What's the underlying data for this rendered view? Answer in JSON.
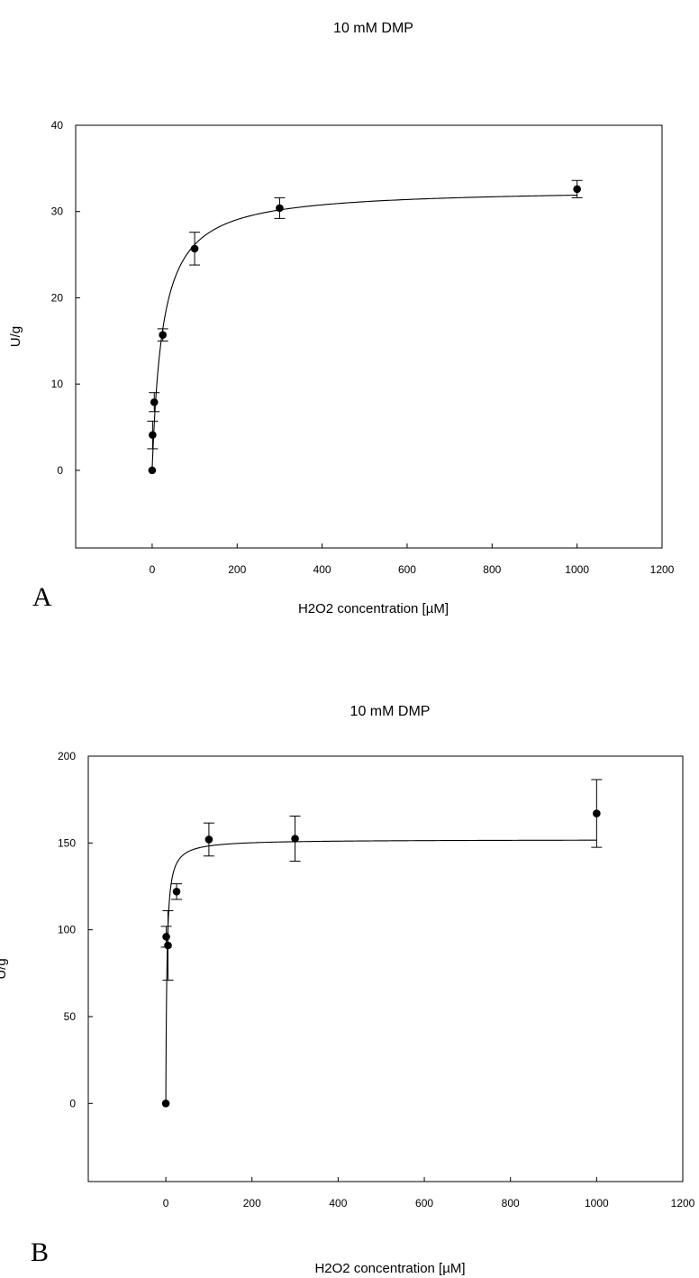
{
  "chart_data": [
    {
      "type": "scatter",
      "panel_label": "A",
      "title": "10 mM DMP",
      "xlabel": "H2O2 concentration [µM]",
      "ylabel": "U/g",
      "xlim": [
        -180,
        1200
      ],
      "ylim": [
        -9,
        40
      ],
      "xticks": [
        0,
        200,
        400,
        600,
        800,
        1000,
        1200
      ],
      "yticks": [
        0,
        10,
        20,
        30,
        40
      ],
      "grid": false,
      "fit_curve": {
        "vmax": 32.7,
        "km": 25
      },
      "points": [
        {
          "x": 0,
          "y": 0,
          "err": 0
        },
        {
          "x": 1,
          "y": 4.1,
          "err": 1.6
        },
        {
          "x": 5,
          "y": 7.9,
          "err": 1.1
        },
        {
          "x": 25,
          "y": 15.7,
          "err": 0.7
        },
        {
          "x": 100,
          "y": 25.7,
          "err": 1.9
        },
        {
          "x": 300,
          "y": 30.4,
          "err": 1.2
        },
        {
          "x": 1000,
          "y": 32.6,
          "err": 1.0
        }
      ]
    },
    {
      "type": "scatter",
      "panel_label": "B",
      "title": "10 mM DMP",
      "xlabel": "H2O2 concentration [µM]",
      "ylabel": "U/g",
      "xlim": [
        -180,
        1200
      ],
      "ylim": [
        -45,
        200
      ],
      "xticks": [
        0,
        200,
        400,
        600,
        800,
        1000,
        1200
      ],
      "yticks": [
        0,
        50,
        100,
        150,
        200
      ],
      "grid": false,
      "fit_curve": {
        "vmax": 152,
        "km": 2.5
      },
      "points": [
        {
          "x": 0,
          "y": 0,
          "err": 0
        },
        {
          "x": 1,
          "y": 96,
          "err": 6
        },
        {
          "x": 5,
          "y": 91,
          "err": 20
        },
        {
          "x": 25,
          "y": 122,
          "err": 4.5
        },
        {
          "x": 100,
          "y": 152,
          "err": 9.5
        },
        {
          "x": 300,
          "y": 152.5,
          "err": 13
        },
        {
          "x": 1000,
          "y": 167,
          "err": 19.5
        }
      ]
    }
  ]
}
